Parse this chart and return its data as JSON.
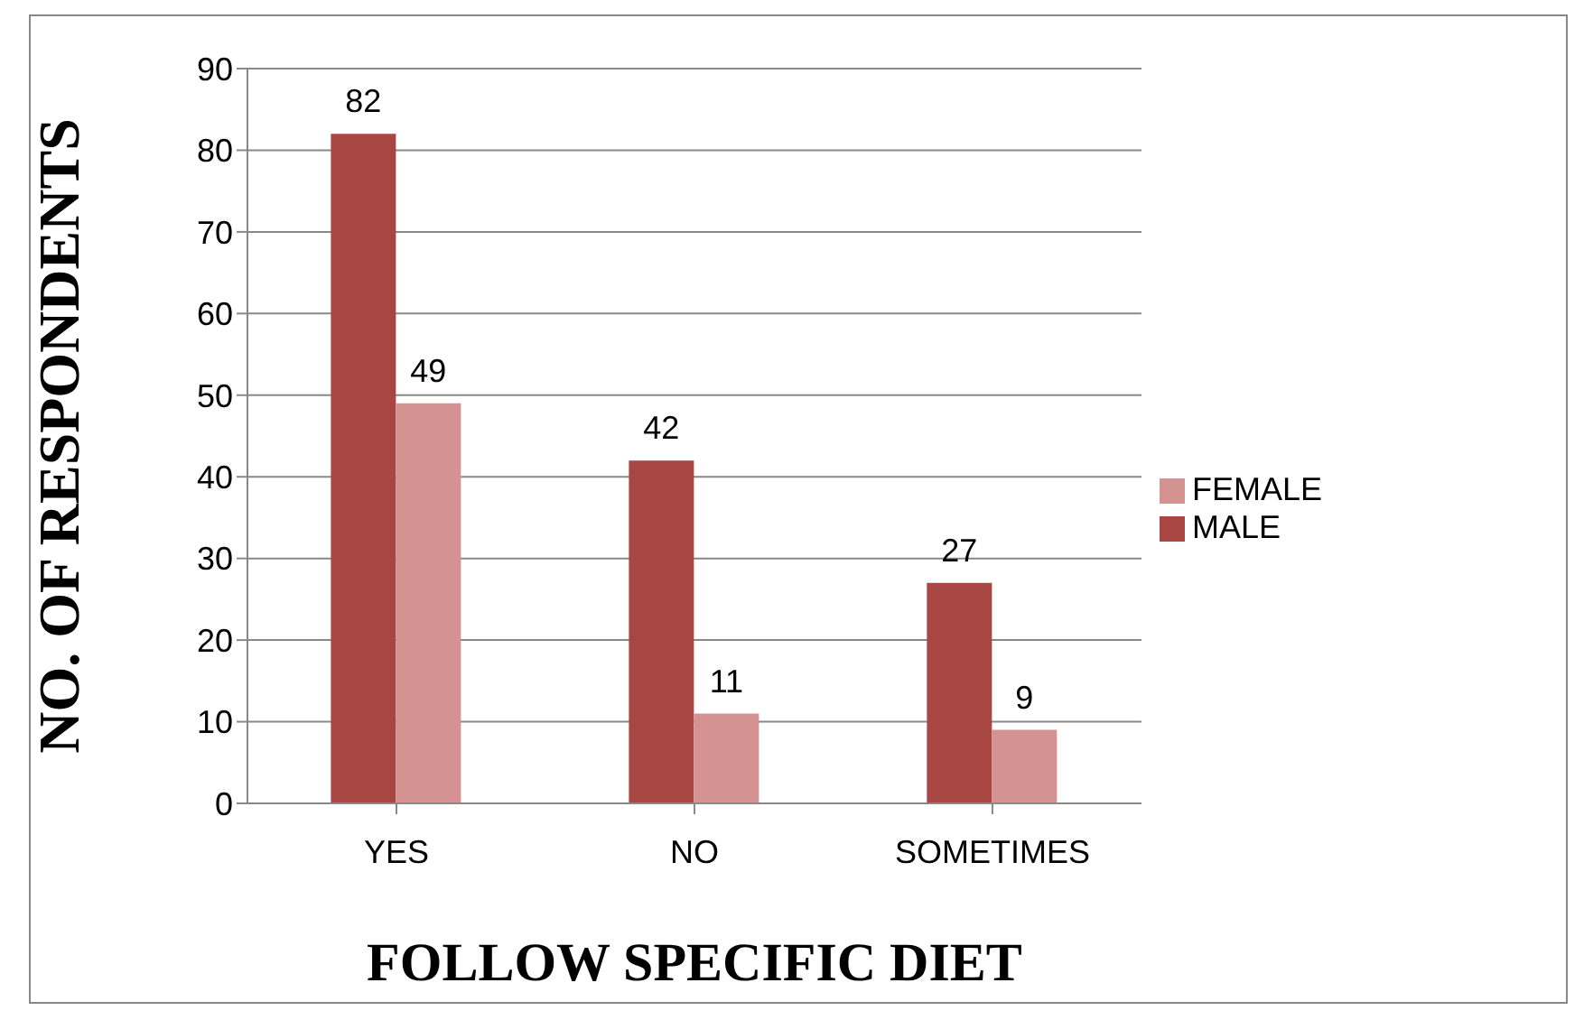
{
  "chart_data": {
    "type": "bar",
    "xlabel": "FOLLOW SPECIFIC DIET",
    "ylabel": "NO. OF RESPONDENTS",
    "categories": [
      "YES",
      "NO",
      "SOMETIMES"
    ],
    "series": [
      {
        "name": "MALE",
        "color": "#a84644",
        "values": [
          82,
          42,
          27
        ]
      },
      {
        "name": "FEMALE",
        "color": "#d49290",
        "values": [
          49,
          11,
          9
        ]
      }
    ],
    "ylim": [
      0,
      90
    ],
    "yticks": [
      0,
      10,
      20,
      30,
      40,
      50,
      60,
      70,
      80,
      90
    ],
    "grid": "y",
    "legend": "right",
    "data_labels": true
  }
}
